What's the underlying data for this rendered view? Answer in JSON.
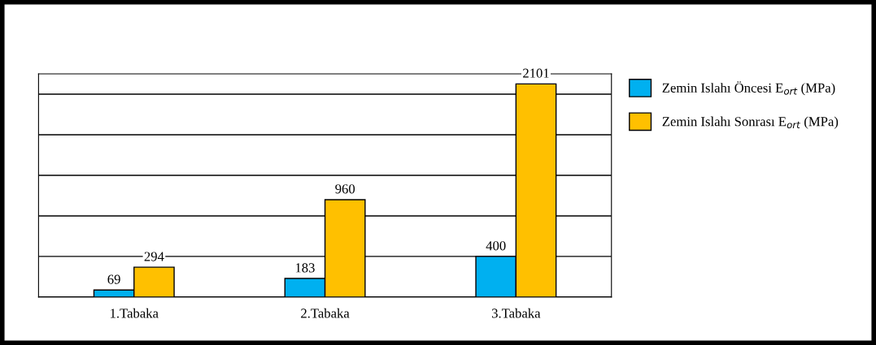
{
  "chart_data": {
    "type": "bar",
    "categories": [
      "1.Tabaka",
      "2.Tabaka",
      "3.Tabaka"
    ],
    "series": [
      {
        "name": "Zemin Islahı Öncesi E$_{ort}$ (MPa)",
        "color": "#00b0f0",
        "values": [
          69,
          183,
          400
        ]
      },
      {
        "name": "Zemin Islahı Sonrası E$_{ort}$ (MPa)",
        "color": "#ffc000",
        "values": [
          294,
          960,
          2101
        ]
      }
    ],
    "ylim": [
      0,
      2200
    ],
    "yticks": [
      {
        "value": 0,
        "label": null
      },
      {
        "value": 400,
        "label": null
      },
      {
        "value": 800,
        "label": null
      },
      {
        "value": 1200,
        "label": null
      },
      {
        "value": 1600,
        "label": null
      },
      {
        "value": 2000,
        "label": null
      }
    ],
    "grid": "y",
    "legend": "top right",
    "data_labels": true,
    "tick_labels": "x"
  }
}
